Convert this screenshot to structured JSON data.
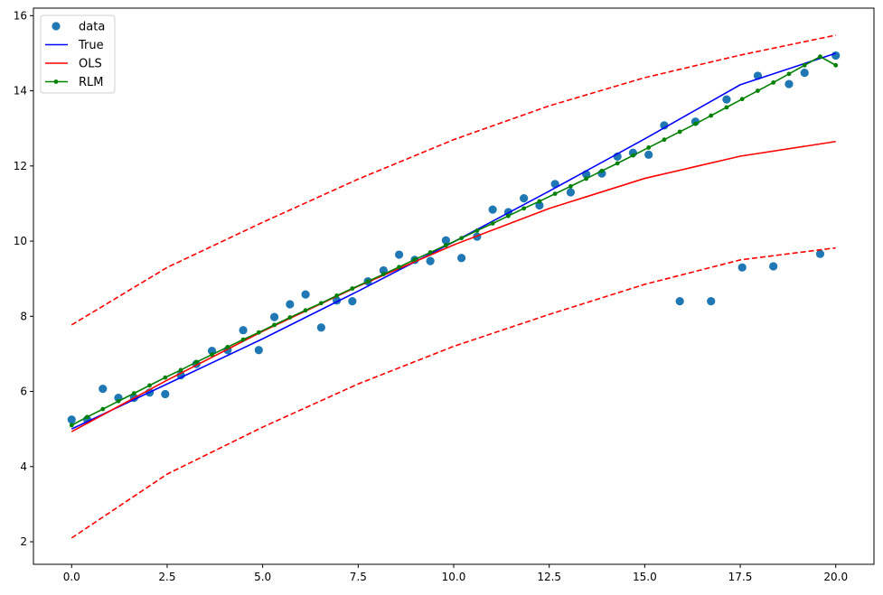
{
  "chart_data": {
    "type": "scatter",
    "title": "",
    "xlabel": "",
    "ylabel": "",
    "xlim": [
      -1.0,
      21.0
    ],
    "ylim": [
      1.4,
      16.2
    ],
    "grid": false,
    "legend_position": "top-left",
    "x_ticks": [
      0.0,
      2.5,
      5.0,
      7.5,
      10.0,
      12.5,
      15.0,
      17.5,
      20.0
    ],
    "x_tick_labels": [
      "0.0",
      "2.5",
      "5.0",
      "7.5",
      "10.0",
      "12.5",
      "15.0",
      "17.5",
      "20.0"
    ],
    "y_ticks": [
      2,
      4,
      6,
      8,
      10,
      12,
      14,
      16
    ],
    "y_tick_labels": [
      "2",
      "4",
      "6",
      "8",
      "10",
      "12",
      "14",
      "16"
    ],
    "series": [
      {
        "name": "data",
        "style": "points",
        "color": "#1f77b4",
        "x": [
          0.0,
          0.408,
          0.816,
          1.224,
          1.633,
          2.041,
          2.449,
          2.857,
          3.265,
          3.673,
          4.082,
          4.49,
          4.898,
          5.306,
          5.714,
          6.122,
          6.531,
          6.939,
          7.347,
          7.755,
          8.163,
          8.571,
          8.98,
          9.388,
          9.796,
          10.204,
          10.612,
          11.02,
          11.429,
          11.837,
          12.245,
          12.653,
          13.061,
          13.469,
          13.878,
          14.286,
          14.694,
          15.102,
          15.51,
          15.918,
          16.327,
          16.735,
          17.143,
          17.551,
          17.959,
          18.367,
          18.776,
          19.184,
          19.592,
          20.0
        ],
        "y": [
          5.25,
          5.25,
          6.07,
          5.83,
          5.83,
          5.97,
          5.93,
          6.43,
          6.73,
          7.08,
          7.1,
          7.63,
          7.1,
          7.98,
          8.32,
          8.58,
          7.7,
          8.42,
          8.4,
          8.93,
          9.22,
          9.64,
          9.5,
          9.47,
          10.02,
          9.55,
          10.12,
          10.84,
          10.77,
          11.14,
          10.95,
          11.52,
          11.3,
          11.78,
          11.8,
          12.25,
          12.35,
          12.3,
          13.08,
          8.4,
          13.18,
          8.4,
          13.77,
          9.3,
          14.4,
          9.33,
          14.18,
          14.48,
          9.66,
          14.94
        ]
      },
      {
        "name": "True",
        "style": "line",
        "color": "#0000ff",
        "x": [
          0,
          2.5,
          5,
          7.5,
          10,
          12.5,
          15,
          17.5,
          20
        ],
        "y": [
          5.0,
          6.2,
          7.4,
          8.67,
          9.98,
          11.33,
          12.72,
          14.16,
          15.0
        ]
      },
      {
        "name": "OLS",
        "style": "line",
        "color": "#ff0000",
        "x": [
          0,
          2.5,
          5,
          7.5,
          10,
          12.5,
          15,
          17.5,
          20
        ],
        "y": [
          4.93,
          6.3,
          7.6,
          8.8,
          9.9,
          10.87,
          11.67,
          12.26,
          12.65
        ]
      },
      {
        "name": "OLS upper bound",
        "style": "dashed",
        "color": "#ff0000",
        "x": [
          0,
          2.5,
          5,
          7.5,
          10,
          12.5,
          15,
          17.5,
          20
        ],
        "y": [
          7.77,
          9.3,
          10.5,
          11.65,
          12.7,
          13.6,
          14.35,
          14.95,
          15.48
        ]
      },
      {
        "name": "OLS lower bound",
        "style": "dashed",
        "color": "#ff0000",
        "x": [
          0,
          2.5,
          5,
          7.5,
          10,
          12.5,
          15,
          17.5,
          20
        ],
        "y": [
          2.1,
          3.8,
          5.05,
          6.2,
          7.2,
          8.05,
          8.85,
          9.5,
          9.82
        ]
      },
      {
        "name": "RLM",
        "style": "line-markers",
        "color": "#008000",
        "x": [
          0.0,
          0.408,
          0.816,
          1.224,
          1.633,
          2.041,
          2.449,
          2.857,
          3.265,
          3.673,
          4.082,
          4.49,
          4.898,
          5.306,
          5.714,
          6.122,
          6.531,
          6.939,
          7.347,
          7.755,
          8.163,
          8.571,
          8.98,
          9.388,
          9.796,
          10.204,
          10.612,
          11.02,
          11.429,
          11.837,
          12.245,
          12.653,
          13.061,
          13.469,
          13.878,
          14.286,
          14.694,
          15.102,
          15.51,
          15.918,
          16.327,
          16.735,
          17.143,
          17.551,
          17.959,
          18.367,
          18.776,
          19.184,
          19.592,
          20.0
        ],
        "y": [
          5.1,
          5.32,
          5.53,
          5.74,
          5.95,
          6.16,
          6.37,
          6.57,
          6.78,
          6.98,
          7.18,
          7.38,
          7.57,
          7.77,
          7.97,
          8.16,
          8.35,
          8.55,
          8.74,
          8.93,
          9.12,
          9.31,
          9.51,
          9.7,
          9.89,
          10.08,
          10.28,
          10.47,
          10.67,
          10.87,
          11.06,
          11.26,
          11.46,
          11.66,
          11.87,
          12.07,
          12.28,
          12.49,
          12.7,
          12.91,
          13.12,
          13.34,
          13.56,
          13.78,
          14.0,
          14.22,
          14.45,
          14.68,
          14.91,
          14.68
        ]
      }
    ],
    "legend": [
      "data",
      "True",
      "OLS",
      "RLM"
    ]
  }
}
